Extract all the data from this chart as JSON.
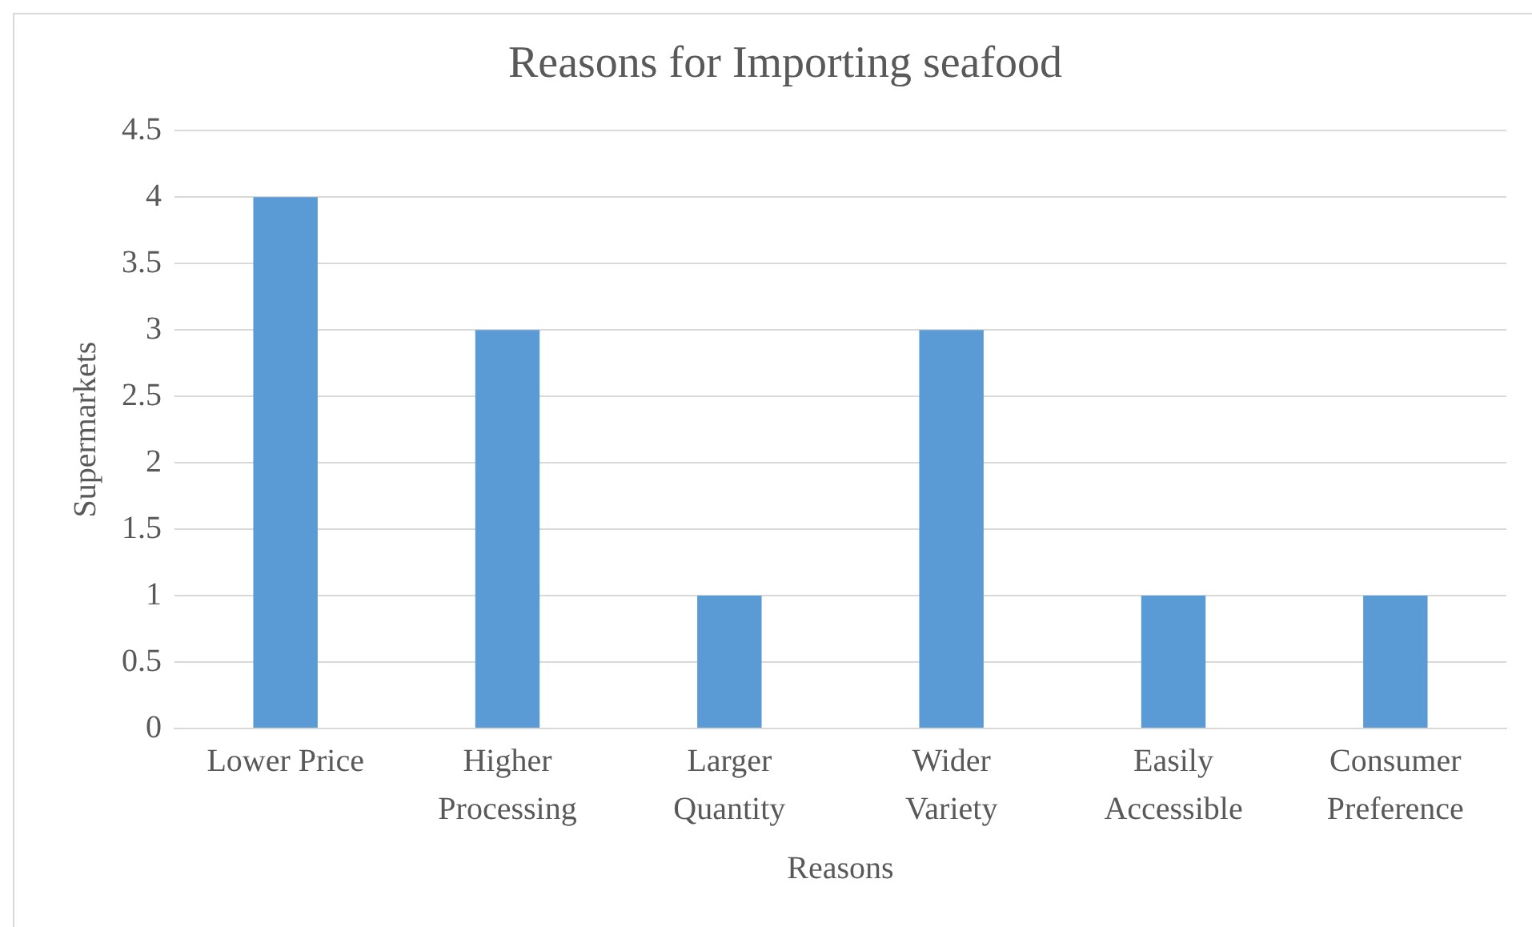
{
  "chart_data": {
    "type": "bar",
    "title": "Reasons for Importing seafood",
    "xlabel": "Reasons",
    "ylabel": "Supermarkets",
    "categories": [
      "Lower Price",
      "Higher Processing",
      "Larger Quantity",
      "Wider Variety",
      "Easily Accessible",
      "Consumer Preference"
    ],
    "values": [
      4,
      3,
      1,
      3,
      1,
      1
    ],
    "color": "#5b9bd5",
    "ylim": [
      0,
      4.5
    ],
    "yticks": [
      0,
      0.5,
      1,
      1.5,
      2,
      2.5,
      3,
      3.5,
      4,
      4.5
    ],
    "grid": "y",
    "legend": false
  }
}
